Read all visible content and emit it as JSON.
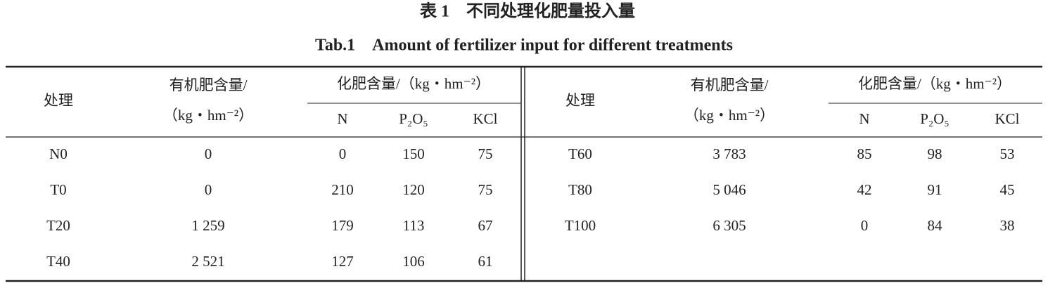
{
  "header": {
    "title_cn": "表 1　不同处理化肥量投入量",
    "title_en": "Tab.1　Amount of fertilizer input for different treatments"
  },
  "columns": {
    "treatment": "处理",
    "organic_line1": "有机肥含量/",
    "organic_line2": "（kg・hm⁻²）",
    "chemical": "化肥含量/（kg・hm⁻²）",
    "n": "N",
    "p2o5": "P₂O₅",
    "kcl": "KCl"
  },
  "table": {
    "left_rows": [
      [
        "N0",
        "0",
        "0",
        "150",
        "75"
      ],
      [
        "T0",
        "0",
        "210",
        "120",
        "75"
      ],
      [
        "T20",
        "1 259",
        "179",
        "113",
        "67"
      ],
      [
        "T40",
        "2 521",
        "127",
        "106",
        "61"
      ]
    ],
    "right_rows": [
      [
        "T60",
        "3 783",
        "85",
        "98",
        "53"
      ],
      [
        "T80",
        "5 046",
        "42",
        "91",
        "45"
      ],
      [
        "T100",
        "6 305",
        "0",
        "84",
        "38"
      ]
    ]
  }
}
